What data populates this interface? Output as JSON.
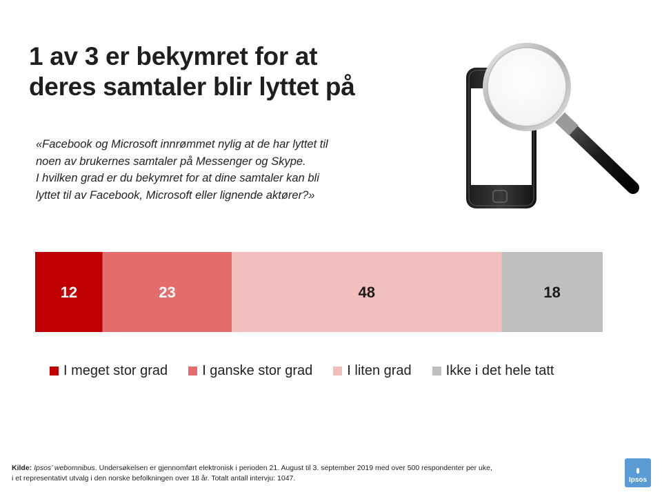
{
  "title_line1": "1 av 3 er bekymret for at",
  "title_line2": "deres samtaler blir lyttet på",
  "quote": [
    "«Facebook og Microsoft innrømmet nylig at de har lyttet til",
    "noen av brukernes samtaler på Messenger og Skype.",
    "I hvilken grad er du bekymret for at dine samtaler kan bli",
    "lyttet til av Facebook, Microsoft eller lignende aktører?»"
  ],
  "illustration": {
    "icon": "smartphone-with-magnifying-glass"
  },
  "chart_data": {
    "type": "bar",
    "orientation": "horizontal-stacked-100",
    "categories": [
      ""
    ],
    "series": [
      {
        "name": "I meget stor grad",
        "values": [
          12
        ],
        "color": "#c00000",
        "label_color": "#ffffff"
      },
      {
        "name": "I ganske stor grad",
        "values": [
          23
        ],
        "color": "#e46c6c",
        "label_color": "#ffffff"
      },
      {
        "name": "I liten grad",
        "values": [
          48
        ],
        "color": "#f2bfbf",
        "label_color": "#1a1a1a"
      },
      {
        "name": "Ikke i det hele tatt",
        "values": [
          18
        ],
        "color": "#bfbfbf",
        "label_color": "#1a1a1a"
      }
    ],
    "legend_position": "bottom",
    "grid": false,
    "title": "",
    "xlabel": "",
    "ylabel": ""
  },
  "footer": {
    "source_label": "Kilde:",
    "source_name": "Ipsos’ webomnibus",
    "line1_rest": ". Undersøkelsen er gjennomført elektronisk i perioden 21. August til 3. september 2019 med over 500 respondenter per uke,",
    "line2": "i et representativt utvalg i den norske befolkningen over 18 år. Totalt antall intervju: 1047."
  },
  "logo": {
    "text": "Ipsos",
    "color": "#5a9bd5"
  }
}
